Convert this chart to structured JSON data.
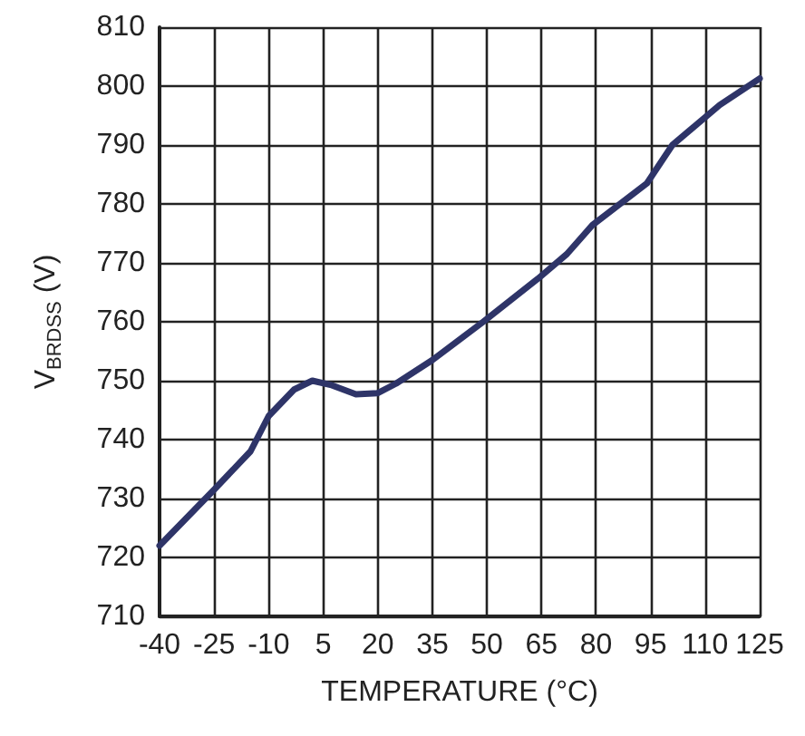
{
  "chart_data": {
    "type": "line",
    "xlabel": "TEMPERATURE (°C)",
    "ylabel": "V$_{BRDSS}$ (V)",
    "x": [
      -40,
      -25,
      -15,
      -10,
      -3,
      2,
      7,
      14,
      20,
      25,
      35,
      49,
      64,
      72,
      79,
      94,
      101,
      114,
      125
    ],
    "series": [
      {
        "color": "#2e3468",
        "values": [
          722,
          731.5,
          738,
          744,
          748.5,
          750,
          749.3,
          747.7,
          747.9,
          749.5,
          753.5,
          760,
          767.3,
          771.5,
          776.4,
          783.5,
          790,
          796.8,
          801.3
        ]
      }
    ],
    "xlim": [
      -40,
      125
    ],
    "xticks": [
      -40,
      -25,
      -10,
      5,
      20,
      35,
      50,
      65,
      80,
      95,
      110,
      125
    ],
    "ylim": [
      710,
      810
    ],
    "yticks": [
      710,
      720,
      730,
      740,
      750,
      760,
      770,
      780,
      790,
      800,
      810
    ],
    "grid": true,
    "marker": "none",
    "line_style": "solid"
  }
}
